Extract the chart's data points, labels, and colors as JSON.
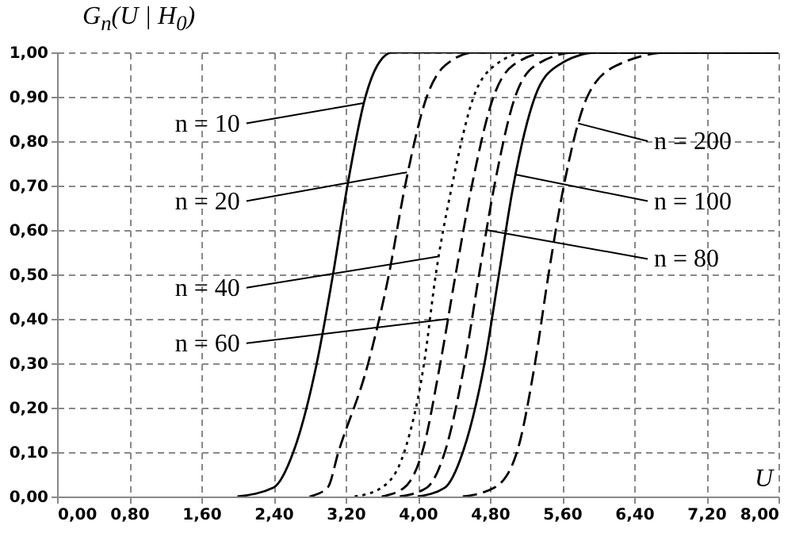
{
  "chart_data": {
    "type": "line",
    "xlabel": "U",
    "ylabel": "G$_{n}$(U | H$_{0}$)",
    "xlim": [
      0,
      8
    ],
    "ylim": [
      0,
      1
    ],
    "xticks": [
      {
        "value": 0,
        "label": "0,00"
      },
      {
        "value": 0.8,
        "label": "0,80"
      },
      {
        "value": 1.6,
        "label": "1,60"
      },
      {
        "value": 2.4,
        "label": "2,40"
      },
      {
        "value": 3.2,
        "label": "3,20"
      },
      {
        "value": 4,
        "label": "4,00"
      },
      {
        "value": 4.8,
        "label": "4,80"
      },
      {
        "value": 5.6,
        "label": "5,60"
      },
      {
        "value": 6.4,
        "label": "6,40"
      },
      {
        "value": 7.2,
        "label": "7,20"
      },
      {
        "value": 8,
        "label": "8,00"
      }
    ],
    "yticks": [
      {
        "value": 0,
        "label": "0,00"
      },
      {
        "value": 0.1,
        "label": "0,10"
      },
      {
        "value": 0.2,
        "label": "0,20"
      },
      {
        "value": 0.3,
        "label": "0,30"
      },
      {
        "value": 0.4,
        "label": "0,40"
      },
      {
        "value": 0.5,
        "label": "0,50"
      },
      {
        "value": 0.6,
        "label": "0,60"
      },
      {
        "value": 0.7,
        "label": "0,70"
      },
      {
        "value": 0.8,
        "label": "0,80"
      },
      {
        "value": 0.9,
        "label": "0,90"
      },
      {
        "value": 1,
        "label": "1,00"
      }
    ],
    "grid": true,
    "marker": "none",
    "series": [
      {
        "color": "#000000",
        "line_style": "solid",
        "x": [
          2.0,
          2.4,
          2.62,
          2.88,
          3.06,
          3.22,
          3.42,
          3.55,
          3.72,
          8
        ],
        "values": [
          0,
          0.02,
          0.1,
          0.3,
          0.5,
          0.7,
          0.9,
          0.97,
          1,
          1
        ]
      },
      {
        "color": "#000000",
        "line_style": "dashed",
        "x": [
          2.8,
          3.0,
          3.12,
          3.45,
          3.68,
          3.86,
          4.1,
          4.3,
          4.64,
          8
        ],
        "values": [
          0,
          0.02,
          0.1,
          0.3,
          0.5,
          0.7,
          0.9,
          0.97,
          1,
          1
        ]
      },
      {
        "color": "#000000",
        "line_style": "dotted",
        "x": [
          3.3,
          3.6,
          3.85,
          4.07,
          4.2,
          4.38,
          4.62,
          4.85,
          5.22,
          8
        ],
        "values": [
          0,
          0.02,
          0.1,
          0.3,
          0.5,
          0.7,
          0.9,
          0.97,
          1,
          1
        ]
      },
      {
        "color": "#000000",
        "line_style": "dashed",
        "x": [
          3.6,
          3.85,
          4.05,
          4.25,
          4.42,
          4.6,
          4.84,
          5.05,
          5.46,
          8
        ],
        "values": [
          0,
          0.02,
          0.1,
          0.3,
          0.5,
          0.7,
          0.9,
          0.97,
          1,
          1
        ]
      },
      {
        "color": "#000000",
        "line_style": "dashed",
        "x": [
          3.8,
          4.1,
          4.3,
          4.52,
          4.68,
          4.85,
          5.08,
          5.3,
          5.75,
          8
        ],
        "values": [
          0,
          0.02,
          0.1,
          0.3,
          0.5,
          0.7,
          0.9,
          0.97,
          1,
          1
        ]
      },
      {
        "color": "#000000",
        "line_style": "solid",
        "x": [
          4.0,
          4.3,
          4.5,
          4.74,
          4.9,
          5.06,
          5.3,
          5.55,
          6.0,
          8
        ],
        "values": [
          0,
          0.02,
          0.1,
          0.3,
          0.5,
          0.7,
          0.9,
          0.97,
          1,
          1
        ]
      },
      {
        "color": "#000000",
        "line_style": "dashed",
        "x": [
          4.5,
          4.85,
          5.1,
          5.3,
          5.45,
          5.62,
          5.88,
          6.2,
          6.8,
          8
        ],
        "values": [
          0,
          0.02,
          0.1,
          0.3,
          0.5,
          0.7,
          0.9,
          0.97,
          1,
          1
        ]
      }
    ],
    "annotations": [
      {
        "text": "n = 10",
        "x": 3.41,
        "y": 0.886
      },
      {
        "text": "n = 20",
        "x": 3.88,
        "y": 0.73
      },
      {
        "text": "n = 40",
        "x": 4.22,
        "y": 0.54
      },
      {
        "text": "n = 60",
        "x": 4.34,
        "y": 0.4
      },
      {
        "text": "n = 200",
        "x": 5.78,
        "y": 0.84
      },
      {
        "text": "n = 100",
        "x": 5.08,
        "y": 0.725
      },
      {
        "text": "n = 80",
        "x": 4.76,
        "y": 0.6
      }
    ]
  }
}
